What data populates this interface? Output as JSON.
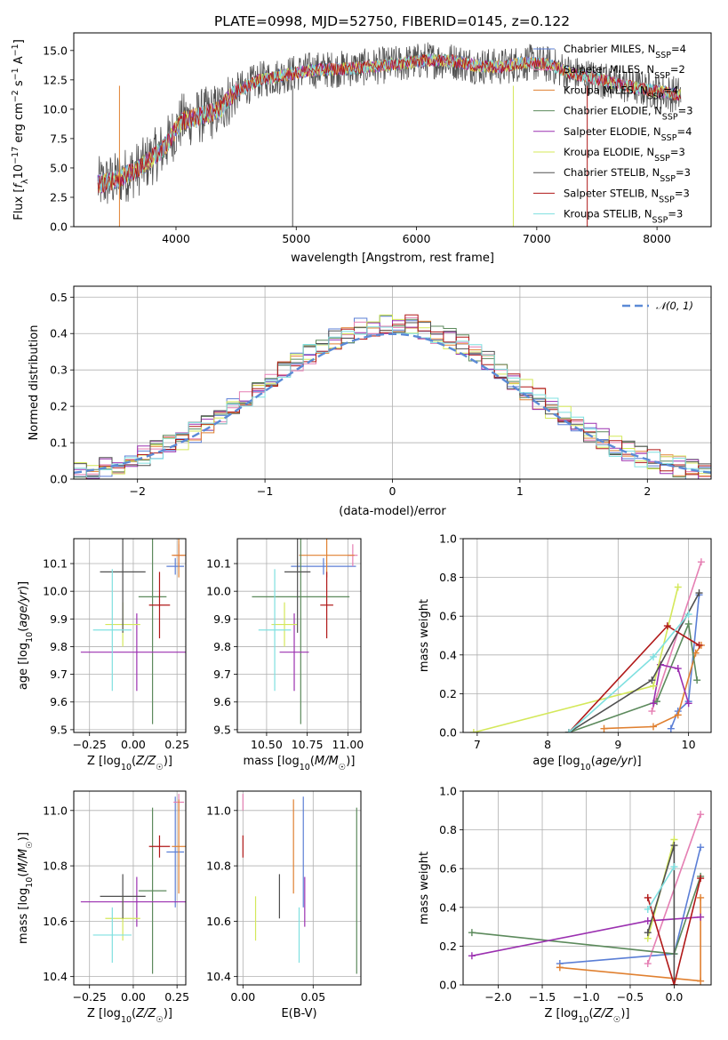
{
  "figure": {
    "title": "PLATE=0998, MJD=52750, FIBERID=0145, z=0.122"
  },
  "chart_data": [
    {
      "id": "spectrum",
      "type": "line",
      "xlabel": "wavelength [Angstrom, rest frame]",
      "ylabel": "Flux [f_λ 10^-17 erg cm^-2 s^-1 A^-1]",
      "xlim": [
        3150,
        8450
      ],
      "ylim": [
        0,
        16.5
      ],
      "xticks": [
        4000,
        5000,
        6000,
        7000,
        8000
      ],
      "yticks": [
        0.0,
        2.5,
        5.0,
        7.5,
        10.0,
        12.5,
        15.0
      ],
      "grid": false,
      "legend_position": "right",
      "continuum_x": [
        3350,
        3500,
        3700,
        3900,
        4050,
        4200,
        4350,
        4500,
        4700,
        4900,
        5100,
        5300,
        5500,
        5700,
        5900,
        6100,
        6300,
        6500,
        6700,
        6900,
        7100,
        7300,
        7500,
        7700,
        7900,
        8200
      ],
      "continuum_y": [
        3.6,
        4.0,
        5.0,
        6.7,
        9.0,
        9.4,
        9.9,
        11.5,
        12.5,
        12.9,
        13.3,
        13.4,
        13.5,
        13.7,
        13.9,
        14.2,
        14.1,
        13.7,
        13.6,
        14.0,
        13.8,
        13.0,
        12.6,
        12.1,
        11.7,
        11.2
      ],
      "series": [
        {
          "name": "Chabrier MILES, N_SSP=4",
          "color": "#5b7fd6"
        },
        {
          "name": "Salpeter MILES, N_SSP=2",
          "color": "#e57fb3"
        },
        {
          "name": "Kroupa MILES, N_SSP=4",
          "color": "#e08030"
        },
        {
          "name": "Chabrier ELODIE, N_SSP=3",
          "color": "#5c8a5c"
        },
        {
          "name": "Salpeter ELODIE, N_SSP=4",
          "color": "#9b30b0"
        },
        {
          "name": "Kroupa ELODIE, N_SSP=3",
          "color": "#d4e85a"
        },
        {
          "name": "Chabrier STELIB, N_SSP=3",
          "color": "#505050"
        },
        {
          "name": "Salpeter STELIB, N_SSP=3",
          "color": "#b01818"
        },
        {
          "name": "Kroupa STELIB, N_SSP=3",
          "color": "#7fe0e0"
        }
      ],
      "legend": [
        {
          "pre": "Chabrier MILES, N",
          "sub": "SSP",
          "post": "=4"
        },
        {
          "pre": "Salpeter MILES, N",
          "sub": "SSP",
          "post": "=2"
        },
        {
          "pre": "Kroupa MILES, N",
          "sub": "SSP",
          "post": "=4"
        },
        {
          "pre": "Chabrier ELODIE, N",
          "sub": "SSP",
          "post": "=3"
        },
        {
          "pre": "Salpeter ELODIE, N",
          "sub": "SSP",
          "post": "=4"
        },
        {
          "pre": "Kroupa ELODIE, N",
          "sub": "SSP",
          "post": "=3"
        },
        {
          "pre": "Chabrier STELIB, N",
          "sub": "SSP",
          "post": "=3"
        },
        {
          "pre": "Salpeter STELIB, N",
          "sub": "SSP",
          "post": "=3"
        },
        {
          "pre": "Kroupa STELIB, N",
          "sub": "SSP",
          "post": "=3"
        }
      ]
    },
    {
      "id": "residuals",
      "type": "line",
      "xlabel": "(data-model)/error",
      "ylabel": "Normed distribution",
      "xlim": [
        -2.5,
        2.5
      ],
      "ylim": [
        0,
        0.53
      ],
      "xticks": [
        -2,
        -1,
        0,
        1,
        2
      ],
      "yticks": [
        0.0,
        0.1,
        0.2,
        0.3,
        0.4,
        0.5
      ],
      "grid": true,
      "legend_position": "top-right",
      "legend_label": "𝒩(0, 1)",
      "normal_curve": {
        "mean": 0,
        "sigma": 1,
        "color": "#5b8ad6"
      }
    },
    {
      "id": "age_vs_Z",
      "type": "scatter",
      "xlabel": "Z [log10(Z/Z☉)]",
      "ylabel": "age [log10(age/yr)]",
      "xlim": [
        -0.34,
        0.3
      ],
      "ylim": [
        9.49,
        10.19
      ],
      "xticks": [
        -0.25,
        0.0,
        0.25
      ],
      "yticks": [
        9.5,
        9.6,
        9.7,
        9.8,
        9.9,
        10.0,
        10.1
      ],
      "points": [
        {
          "x": 0.24,
          "y": 10.09,
          "xerr": 0.05,
          "yerr": 0.03,
          "color": "#5b7fd6"
        },
        {
          "x": 0.26,
          "y": 10.13,
          "xerr": 0.03,
          "yerr": 0.04,
          "color": "#e57fb3"
        },
        {
          "x": 0.26,
          "y": 10.13,
          "xerr": 0.04,
          "yerr": 0.08,
          "color": "#e08030"
        },
        {
          "x": 0.11,
          "y": 9.98,
          "xerr": 0.08,
          "yerr": 0.46,
          "color": "#5c8a5c"
        },
        {
          "x": 0.02,
          "y": 9.78,
          "xerr": 0.32,
          "yerr": 0.14,
          "color": "#9b30b0"
        },
        {
          "x": -0.06,
          "y": 9.88,
          "xerr": 0.1,
          "yerr": 0.08,
          "color": "#d4e85a"
        },
        {
          "x": -0.06,
          "y": 10.07,
          "xerr": 0.13,
          "yerr": 0.22,
          "color": "#505050"
        },
        {
          "x": 0.15,
          "y": 9.95,
          "xerr": 0.06,
          "yerr": 0.12,
          "color": "#b01818"
        },
        {
          "x": -0.12,
          "y": 9.86,
          "xerr": 0.11,
          "yerr": 0.22,
          "color": "#7fe0e0"
        }
      ]
    },
    {
      "id": "age_vs_mass",
      "type": "scatter",
      "xlabel": "mass [log10(M/M☉)]",
      "ylabel": "",
      "xlim": [
        10.32,
        11.08
      ],
      "ylim": [
        9.49,
        10.19
      ],
      "xticks": [
        10.5,
        10.75,
        11.0
      ],
      "yticks": [
        9.5,
        9.6,
        9.7,
        9.8,
        9.9,
        10.0,
        10.1
      ],
      "points": [
        {
          "x": 10.85,
          "y": 10.09,
          "xerr": 0.2,
          "yerr": 0.03,
          "color": "#5b7fd6"
        },
        {
          "x": 11.03,
          "y": 10.13,
          "xerr": 0.03,
          "yerr": 0.04,
          "color": "#e57fb3"
        },
        {
          "x": 10.87,
          "y": 10.13,
          "xerr": 0.17,
          "yerr": 0.08,
          "color": "#e08030"
        },
        {
          "x": 10.71,
          "y": 9.98,
          "xerr": 0.3,
          "yerr": 0.46,
          "color": "#5c8a5c"
        },
        {
          "x": 10.67,
          "y": 9.78,
          "xerr": 0.09,
          "yerr": 0.14,
          "color": "#9b30b0"
        },
        {
          "x": 10.61,
          "y": 9.88,
          "xerr": 0.08,
          "yerr": 0.08,
          "color": "#d4e85a"
        },
        {
          "x": 10.69,
          "y": 10.07,
          "xerr": 0.08,
          "yerr": 0.22,
          "color": "#505050"
        },
        {
          "x": 10.87,
          "y": 9.95,
          "xerr": 0.04,
          "yerr": 0.12,
          "color": "#b01818"
        },
        {
          "x": 10.55,
          "y": 9.86,
          "xerr": 0.1,
          "yerr": 0.22,
          "color": "#7fe0e0"
        }
      ]
    },
    {
      "id": "weight_vs_age",
      "type": "line",
      "xlabel": "age [log10(age/yr)]",
      "ylabel": "mass weight",
      "xlim": [
        6.8,
        10.32
      ],
      "ylim": [
        0,
        1.0
      ],
      "xticks": [
        7,
        8,
        9,
        10
      ],
      "yticks": [
        0.0,
        0.2,
        0.4,
        0.6,
        0.8,
        1.0
      ],
      "series": [
        {
          "color": "#5b7fd6",
          "x": [
            9.75,
            9.85,
            10.0,
            10.15
          ],
          "y": [
            0.02,
            0.11,
            0.16,
            0.71
          ]
        },
        {
          "color": "#e57fb3",
          "x": [
            9.48,
            10.18
          ],
          "y": [
            0.11,
            0.88
          ]
        },
        {
          "color": "#e08030",
          "x": [
            8.8,
            9.5,
            9.85,
            10.1,
            10.18
          ],
          "y": [
            0.02,
            0.03,
            0.09,
            0.41,
            0.45
          ]
        },
        {
          "color": "#5c8a5c",
          "x": [
            8.3,
            9.55,
            10.0,
            10.12
          ],
          "y": [
            0.0,
            0.16,
            0.56,
            0.27
          ]
        },
        {
          "color": "#9b30b0",
          "x": [
            9.5,
            9.6,
            9.85,
            10.0
          ],
          "y": [
            0.15,
            0.35,
            0.33,
            0.15
          ]
        },
        {
          "color": "#d4e85a",
          "x": [
            6.95,
            9.5,
            9.85
          ],
          "y": [
            0.0,
            0.24,
            0.75
          ]
        },
        {
          "color": "#505050",
          "x": [
            8.3,
            9.48,
            10.15
          ],
          "y": [
            0.0,
            0.27,
            0.72
          ]
        },
        {
          "color": "#b01818",
          "x": [
            8.3,
            9.7,
            10.15
          ],
          "y": [
            0.0,
            0.55,
            0.45
          ]
        },
        {
          "color": "#7fe0e0",
          "x": [
            8.3,
            9.5,
            10.0
          ],
          "y": [
            0.0,
            0.39,
            0.61
          ]
        }
      ]
    },
    {
      "id": "mass_vs_Z",
      "type": "scatter",
      "xlabel": "Z [log10(Z/Z☉)]",
      "ylabel": "mass [log10(M/M☉)]",
      "xlim": [
        -0.34,
        0.3
      ],
      "ylim": [
        10.37,
        11.07
      ],
      "xticks": [
        -0.25,
        0.0,
        0.25
      ],
      "yticks": [
        10.4,
        10.6,
        10.8,
        11.0
      ],
      "points": [
        {
          "x": 0.24,
          "y": 10.85,
          "xerr": 0.05,
          "yerr": 0.2,
          "color": "#5b7fd6"
        },
        {
          "x": 0.26,
          "y": 11.03,
          "xerr": 0.03,
          "yerr": 0.03,
          "color": "#e57fb3"
        },
        {
          "x": 0.26,
          "y": 10.87,
          "xerr": 0.04,
          "yerr": 0.17,
          "color": "#e08030"
        },
        {
          "x": 0.11,
          "y": 10.71,
          "xerr": 0.08,
          "yerr": 0.3,
          "color": "#5c8a5c"
        },
        {
          "x": 0.02,
          "y": 10.67,
          "xerr": 0.32,
          "yerr": 0.09,
          "color": "#9b30b0"
        },
        {
          "x": -0.06,
          "y": 10.61,
          "xerr": 0.1,
          "yerr": 0.08,
          "color": "#d4e85a"
        },
        {
          "x": -0.06,
          "y": 10.69,
          "xerr": 0.13,
          "yerr": 0.08,
          "color": "#505050"
        },
        {
          "x": 0.15,
          "y": 10.87,
          "xerr": 0.06,
          "yerr": 0.04,
          "color": "#b01818"
        },
        {
          "x": -0.12,
          "y": 10.55,
          "xerr": 0.11,
          "yerr": 0.1,
          "color": "#7fe0e0"
        }
      ]
    },
    {
      "id": "mass_vs_ebv",
      "type": "scatter",
      "xlabel": "E(B-V)",
      "ylabel": "",
      "xlim": [
        -0.004,
        0.084
      ],
      "ylim": [
        10.37,
        11.07
      ],
      "xticks": [
        0.0,
        0.05
      ],
      "yticks": [
        10.4,
        10.6,
        10.8,
        11.0
      ],
      "points": [
        {
          "x": 0.043,
          "y": 10.85,
          "xerr": 0,
          "yerr": 0.2,
          "color": "#5b7fd6"
        },
        {
          "x": 0.0,
          "y": 11.03,
          "xerr": 0,
          "yerr": 0.03,
          "color": "#e57fb3"
        },
        {
          "x": 0.036,
          "y": 10.87,
          "xerr": 0,
          "yerr": 0.17,
          "color": "#e08030"
        },
        {
          "x": 0.081,
          "y": 10.71,
          "xerr": 0,
          "yerr": 0.3,
          "color": "#5c8a5c"
        },
        {
          "x": 0.044,
          "y": 10.67,
          "xerr": 0,
          "yerr": 0.09,
          "color": "#9b30b0"
        },
        {
          "x": 0.009,
          "y": 10.61,
          "xerr": 0,
          "yerr": 0.08,
          "color": "#d4e85a"
        },
        {
          "x": 0.026,
          "y": 10.69,
          "xerr": 0,
          "yerr": 0.08,
          "color": "#505050"
        },
        {
          "x": 0.0,
          "y": 10.87,
          "xerr": 0,
          "yerr": 0.04,
          "color": "#b01818"
        },
        {
          "x": 0.04,
          "y": 10.55,
          "xerr": 0,
          "yerr": 0.1,
          "color": "#7fe0e0"
        }
      ]
    },
    {
      "id": "weight_vs_Z",
      "type": "line",
      "xlabel": "Z [log10(Z/Z☉)]",
      "ylabel": "mass weight",
      "xlim": [
        -2.4,
        0.42
      ],
      "ylim": [
        0,
        1.0
      ],
      "xticks": [
        -2.0,
        -1.5,
        -1.0,
        -0.5,
        0.0
      ],
      "yticks": [
        0.0,
        0.2,
        0.4,
        0.6,
        0.8,
        1.0
      ],
      "series": [
        {
          "color": "#5b7fd6",
          "x": [
            -1.3,
            0.0,
            0.3
          ],
          "y": [
            0.11,
            0.16,
            0.71
          ]
        },
        {
          "color": "#e57fb3",
          "x": [
            -0.3,
            0.3
          ],
          "y": [
            0.11,
            0.88
          ]
        },
        {
          "color": "#e08030",
          "x": [
            -1.3,
            0.3,
            0.3
          ],
          "y": [
            0.09,
            0.02,
            0.45
          ]
        },
        {
          "color": "#5c8a5c",
          "x": [
            -2.3,
            0.0,
            0.3
          ],
          "y": [
            0.27,
            0.16,
            0.56
          ]
        },
        {
          "color": "#9b30b0",
          "x": [
            -2.3,
            -0.3,
            0.3
          ],
          "y": [
            0.15,
            0.33,
            0.35
          ]
        },
        {
          "color": "#d4e85a",
          "x": [
            -0.3,
            0.0
          ],
          "y": [
            0.24,
            0.75
          ]
        },
        {
          "color": "#505050",
          "x": [
            -0.3,
            0.0,
            0.0
          ],
          "y": [
            0.27,
            0.72,
            0.0
          ]
        },
        {
          "color": "#b01818",
          "x": [
            -0.3,
            0.0,
            0.3
          ],
          "y": [
            0.45,
            0.0,
            0.55
          ]
        },
        {
          "color": "#7fe0e0",
          "x": [
            -0.3,
            0.0
          ],
          "y": [
            0.39,
            0.61
          ]
        }
      ]
    }
  ]
}
